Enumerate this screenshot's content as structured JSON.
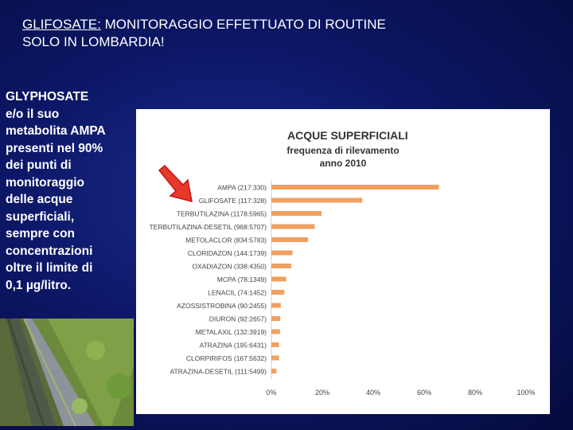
{
  "slide": {
    "title_part1": "GLIFOSATE:",
    "title_part2": " MONITORAGGIO EFFETTUATO  DI ROUTINE",
    "title_line2": "SOLO IN LOMBARDIA!"
  },
  "side_text": {
    "lines": [
      "GLYPHOSATE",
      "e/o il suo",
      "metabolita AMPA",
      "presenti nel 90%",
      "dei punti di",
      "monitoraggio",
      "delle acque",
      "superficiali,",
      "sempre con",
      "concentrazioni",
      "oltre il limite di",
      "0,1 µg/litro."
    ]
  },
  "colors": {
    "bar": "#f0a060",
    "arrow_fill": "#e8382a",
    "arrow_stroke": "#c01818"
  },
  "icons": {
    "arrow": "arrow-down-right-icon"
  },
  "chart_data": {
    "type": "bar",
    "orientation": "horizontal",
    "title": "ACQUE SUPERFICIALI",
    "subtitle_line1": "frequenza di rilevamento",
    "subtitle_line2": "anno 2010",
    "categories": [
      "AMPA (217:330)",
      "GLIFOSATE (117:328)",
      "TERBUTILAZINA (1178:5965)",
      "TERBUTILAZINA-DESETIL (968:5707)",
      "METOLACLOR (834:5783)",
      "CLORIDAZON (144:1739)",
      "OXADIAZON (338:4350)",
      "MCPA (78:1349)",
      "LENACIL (74:1452)",
      "AZOSSISTROBINA (90:2455)",
      "DIURON (92:2657)",
      "METALAXIL (132:3919)",
      "ATRAZINA (195:6431)",
      "CLORPIRIFOS (167:5632)",
      "ATRAZINA-DESETIL (111:5499)"
    ],
    "values": [
      65.8,
      35.7,
      19.7,
      17.0,
      14.4,
      8.3,
      7.8,
      5.8,
      5.1,
      3.7,
      3.5,
      3.4,
      3.0,
      3.0,
      2.0
    ],
    "x_ticks": [
      "0%",
      "20%",
      "40%",
      "60%",
      "80%",
      "100%"
    ],
    "xlim": [
      0,
      100
    ],
    "unit": "%",
    "grid": false,
    "legend": "none"
  }
}
